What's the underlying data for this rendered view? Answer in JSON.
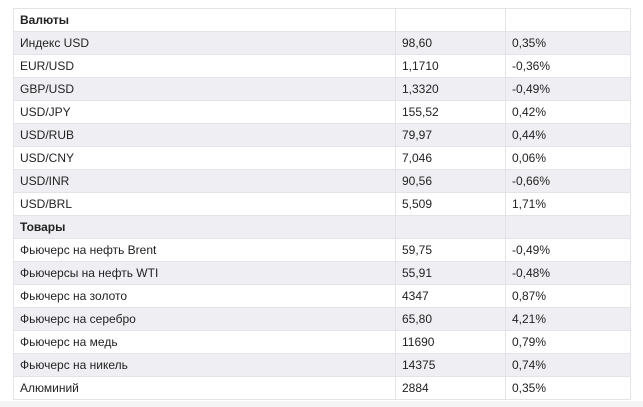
{
  "sections": [
    {
      "title": "Валюты",
      "rows": [
        [
          "Индекс USD",
          "98,60",
          "0,35%"
        ],
        [
          "EUR/USD",
          "1,1710",
          "-0,36%"
        ],
        [
          "GBP/USD",
          "1,3320",
          "-0,49%"
        ],
        [
          "USD/JPY",
          "155,52",
          "0,42%"
        ],
        [
          "USD/RUB",
          "79,97",
          "0,44%"
        ],
        [
          "USD/CNY",
          "7,046",
          "0,06%"
        ],
        [
          "USD/INR",
          "90,56",
          "-0,66%"
        ],
        [
          "USD/BRL",
          "5,509",
          "1,71%"
        ]
      ]
    },
    {
      "title": "Товары",
      "rows": [
        [
          "Фьючерс на нефть Brent",
          "59,75",
          "-0,49%"
        ],
        [
          "Фьючерсы на нефть WTI",
          "55,91",
          "-0,48%"
        ],
        [
          "Фьючерс на золото",
          "4347",
          "0,87%"
        ],
        [
          "Фьючерс на серебро",
          "65,80",
          "4,21%"
        ],
        [
          "Фьючерс на медь",
          "11690",
          "0,79%"
        ],
        [
          "Фьючерс на никель",
          "14375",
          "0,74%"
        ],
        [
          "Алюминий",
          "2884",
          "0,35%"
        ]
      ]
    }
  ]
}
